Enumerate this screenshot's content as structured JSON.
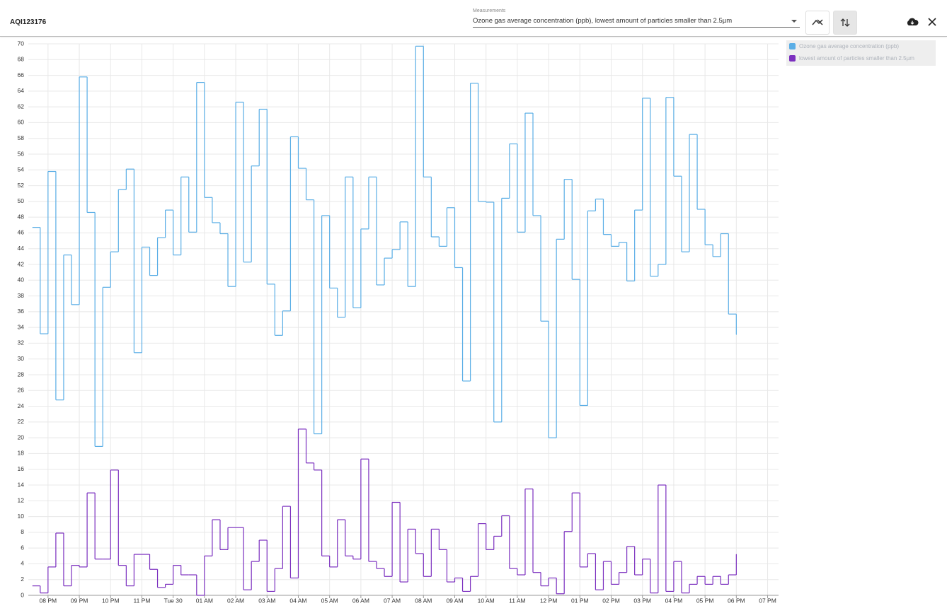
{
  "header": {
    "title": "AQI123176",
    "select_label": "Measurements",
    "select_value": "Ozone gas average concentration (ppb), lowest amount of particles smaller than 2.5µm"
  },
  "chart_data": {
    "type": "step",
    "x": [
      19.5,
      19.75,
      20,
      20.25,
      20.5,
      20.75,
      21,
      21.25,
      21.5,
      21.75,
      22,
      22.25,
      22.5,
      22.75,
      23,
      23.25,
      23.5,
      23.75,
      24,
      24.25,
      24.5,
      24.75,
      25,
      25.25,
      25.5,
      25.75,
      26,
      26.25,
      26.5,
      26.75,
      27,
      27.25,
      27.5,
      27.75,
      28,
      28.25,
      28.5,
      28.75,
      29,
      29.25,
      29.5,
      29.75,
      30,
      30.25,
      30.5,
      30.75,
      31,
      31.25,
      31.5,
      31.75,
      32,
      32.25,
      32.5,
      32.75,
      33,
      33.25,
      33.5,
      33.75,
      34,
      34.25,
      34.5,
      34.75,
      35,
      35.25,
      35.5,
      35.75,
      36,
      36.25,
      36.5,
      36.75,
      37,
      37.25,
      37.5,
      37.75,
      38,
      38.25,
      38.5,
      38.75,
      39,
      39.25,
      39.5,
      39.75,
      40,
      40.25,
      40.5,
      40.75,
      41,
      41.25,
      41.5,
      41.75,
      42
    ],
    "series": [
      {
        "name": "Ozone gas average concentration (ppb)",
        "color": "#5aaee6",
        "values": [
          46.7,
          33.2,
          53.8,
          24.8,
          43.2,
          36.9,
          65.8,
          48.6,
          18.9,
          39.1,
          43.6,
          51.5,
          54.1,
          30.8,
          44.2,
          40.6,
          45.4,
          48.9,
          43.2,
          53.1,
          46.1,
          65.1,
          50.5,
          47.3,
          45.9,
          39.2,
          62.6,
          42.3,
          54.5,
          61.7,
          39.5,
          33.0,
          36.1,
          58.2,
          54.2,
          50.2,
          20.5,
          48.2,
          39.0,
          35.3,
          53.1,
          36.5,
          46.5,
          53.1,
          39.4,
          42.8,
          43.9,
          47.4,
          39.2,
          69.7,
          53.1,
          45.5,
          44.3,
          49.2,
          41.6,
          27.2,
          65.0,
          50.0,
          49.9,
          22.0,
          50.4,
          57.3,
          46.1,
          61.2,
          48.2,
          34.8,
          20.0,
          45.2,
          52.8,
          40.1,
          24.1,
          48.8,
          50.3,
          45.8,
          44.3,
          44.8,
          39.9,
          48.9,
          63.1,
          40.5,
          42.0,
          63.2,
          53.2,
          43.6,
          58.5,
          49.0,
          44.5,
          43.0,
          45.9,
          35.7,
          33.1
        ]
      },
      {
        "name": "lowest amount of particles smaller than 2.5µm",
        "color": "#7b2fbf",
        "values": [
          1.2,
          0.3,
          3.6,
          7.9,
          1.2,
          3.8,
          3.6,
          13.0,
          4.6,
          4.6,
          15.9,
          3.8,
          1.2,
          5.2,
          5.2,
          3.3,
          1.0,
          1.4,
          3.8,
          2.6,
          2.6,
          0.0,
          5.0,
          9.6,
          5.8,
          8.6,
          8.6,
          0.7,
          4.3,
          7.0,
          0.5,
          3.4,
          11.3,
          2.2,
          21.1,
          16.8,
          15.9,
          5.0,
          3.6,
          9.6,
          5.0,
          4.6,
          17.3,
          4.3,
          3.4,
          2.4,
          11.8,
          1.7,
          8.4,
          5.3,
          2.4,
          8.4,
          5.8,
          1.7,
          2.2,
          0.5,
          2.4,
          9.1,
          5.8,
          7.5,
          10.1,
          3.4,
          2.6,
          13.5,
          2.9,
          1.2,
          2.2,
          0.2,
          8.1,
          13.0,
          3.6,
          5.3,
          0.7,
          4.3,
          1.4,
          2.9,
          6.2,
          2.6,
          4.6,
          0.3,
          14.0,
          0.5,
          4.3,
          0.3,
          1.4,
          2.4,
          1.4,
          2.4,
          1.4,
          2.6,
          5.2
        ]
      }
    ],
    "xlim": [
      19.37,
      43.35
    ],
    "xticks": [
      {
        "value": 20,
        "label": "08 PM"
      },
      {
        "value": 21,
        "label": "09 PM"
      },
      {
        "value": 22,
        "label": "10 PM"
      },
      {
        "value": 23,
        "label": "11 PM"
      },
      {
        "value": 24,
        "label": "Tue 30"
      },
      {
        "value": 25,
        "label": "01 AM"
      },
      {
        "value": 26,
        "label": "02 AM"
      },
      {
        "value": 27,
        "label": "03 AM"
      },
      {
        "value": 28,
        "label": "04 AM"
      },
      {
        "value": 29,
        "label": "05 AM"
      },
      {
        "value": 30,
        "label": "06 AM"
      },
      {
        "value": 31,
        "label": "07 AM"
      },
      {
        "value": 32,
        "label": "08 AM"
      },
      {
        "value": 33,
        "label": "09 AM"
      },
      {
        "value": 34,
        "label": "10 AM"
      },
      {
        "value": 35,
        "label": "11 AM"
      },
      {
        "value": 36,
        "label": "12 PM"
      },
      {
        "value": 37,
        "label": "01 PM"
      },
      {
        "value": 38,
        "label": "02 PM"
      },
      {
        "value": 39,
        "label": "03 PM"
      },
      {
        "value": 40,
        "label": "04 PM"
      },
      {
        "value": 41,
        "label": "05 PM"
      },
      {
        "value": 42,
        "label": "06 PM"
      },
      {
        "value": 43,
        "label": "07 PM"
      }
    ],
    "ylim": [
      0,
      70
    ],
    "yticks": [
      0,
      2,
      4,
      6,
      8,
      10,
      12,
      14,
      16,
      18,
      20,
      22,
      24,
      26,
      28,
      30,
      32,
      34,
      36,
      38,
      40,
      42,
      44,
      46,
      48,
      50,
      52,
      54,
      56,
      58,
      60,
      62,
      64,
      66,
      68,
      70
    ],
    "grid": true,
    "legend": "top-right"
  }
}
